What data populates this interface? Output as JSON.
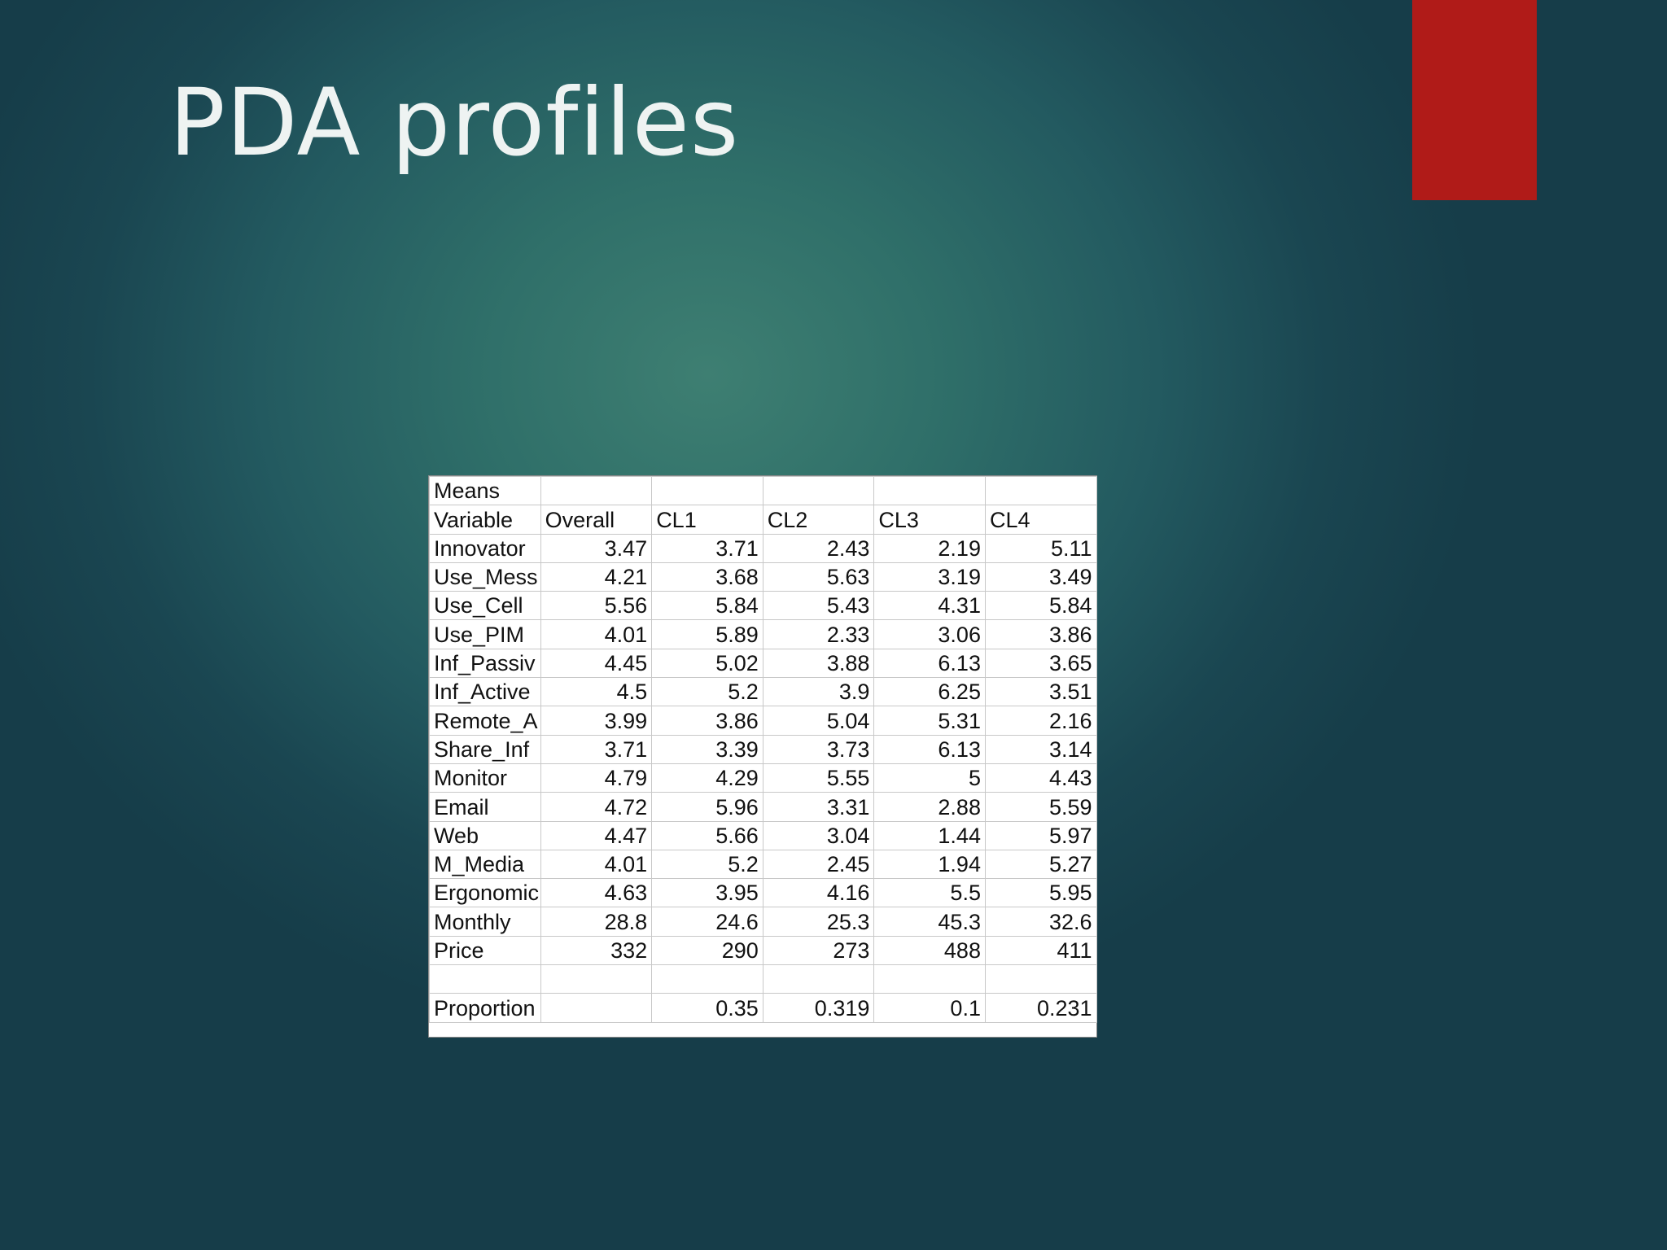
{
  "slide": {
    "title": "PDA profiles",
    "accent_color": "#b01b18"
  },
  "table": {
    "caption": "Means",
    "columns": [
      "Variable",
      "Overall",
      "CL1",
      "CL2",
      "CL3",
      "CL4"
    ],
    "rows": [
      [
        "Innovator",
        "3.47",
        "3.71",
        "2.43",
        "2.19",
        "5.11"
      ],
      [
        "Use_Mess",
        "4.21",
        "3.68",
        "5.63",
        "3.19",
        "3.49"
      ],
      [
        "Use_Cell",
        "5.56",
        "5.84",
        "5.43",
        "4.31",
        "5.84"
      ],
      [
        "Use_PIM",
        "4.01",
        "5.89",
        "2.33",
        "3.06",
        "3.86"
      ],
      [
        "Inf_Passiv",
        "4.45",
        "5.02",
        "3.88",
        "6.13",
        "3.65"
      ],
      [
        "Inf_Active",
        "4.5",
        "5.2",
        "3.9",
        "6.25",
        "3.51"
      ],
      [
        "Remote_A",
        "3.99",
        "3.86",
        "5.04",
        "5.31",
        "2.16"
      ],
      [
        "Share_Inf",
        "3.71",
        "3.39",
        "3.73",
        "6.13",
        "3.14"
      ],
      [
        "Monitor",
        "4.79",
        "4.29",
        "5.55",
        "5",
        "4.43"
      ],
      [
        "Email",
        "4.72",
        "5.96",
        "3.31",
        "2.88",
        "5.59"
      ],
      [
        "Web",
        "4.47",
        "5.66",
        "3.04",
        "1.44",
        "5.97"
      ],
      [
        "M_Media",
        "4.01",
        "5.2",
        "2.45",
        "1.94",
        "5.27"
      ],
      [
        "Ergonomic",
        "4.63",
        "3.95",
        "4.16",
        "5.5",
        "5.95"
      ],
      [
        "Monthly",
        "28.8",
        "24.6",
        "25.3",
        "45.3",
        "32.6"
      ],
      [
        "Price",
        "332",
        "290",
        "273",
        "488",
        "411"
      ]
    ],
    "proportion": [
      "Proportion",
      "",
      "0.35",
      "0.319",
      "0.1",
      "0.231"
    ]
  }
}
